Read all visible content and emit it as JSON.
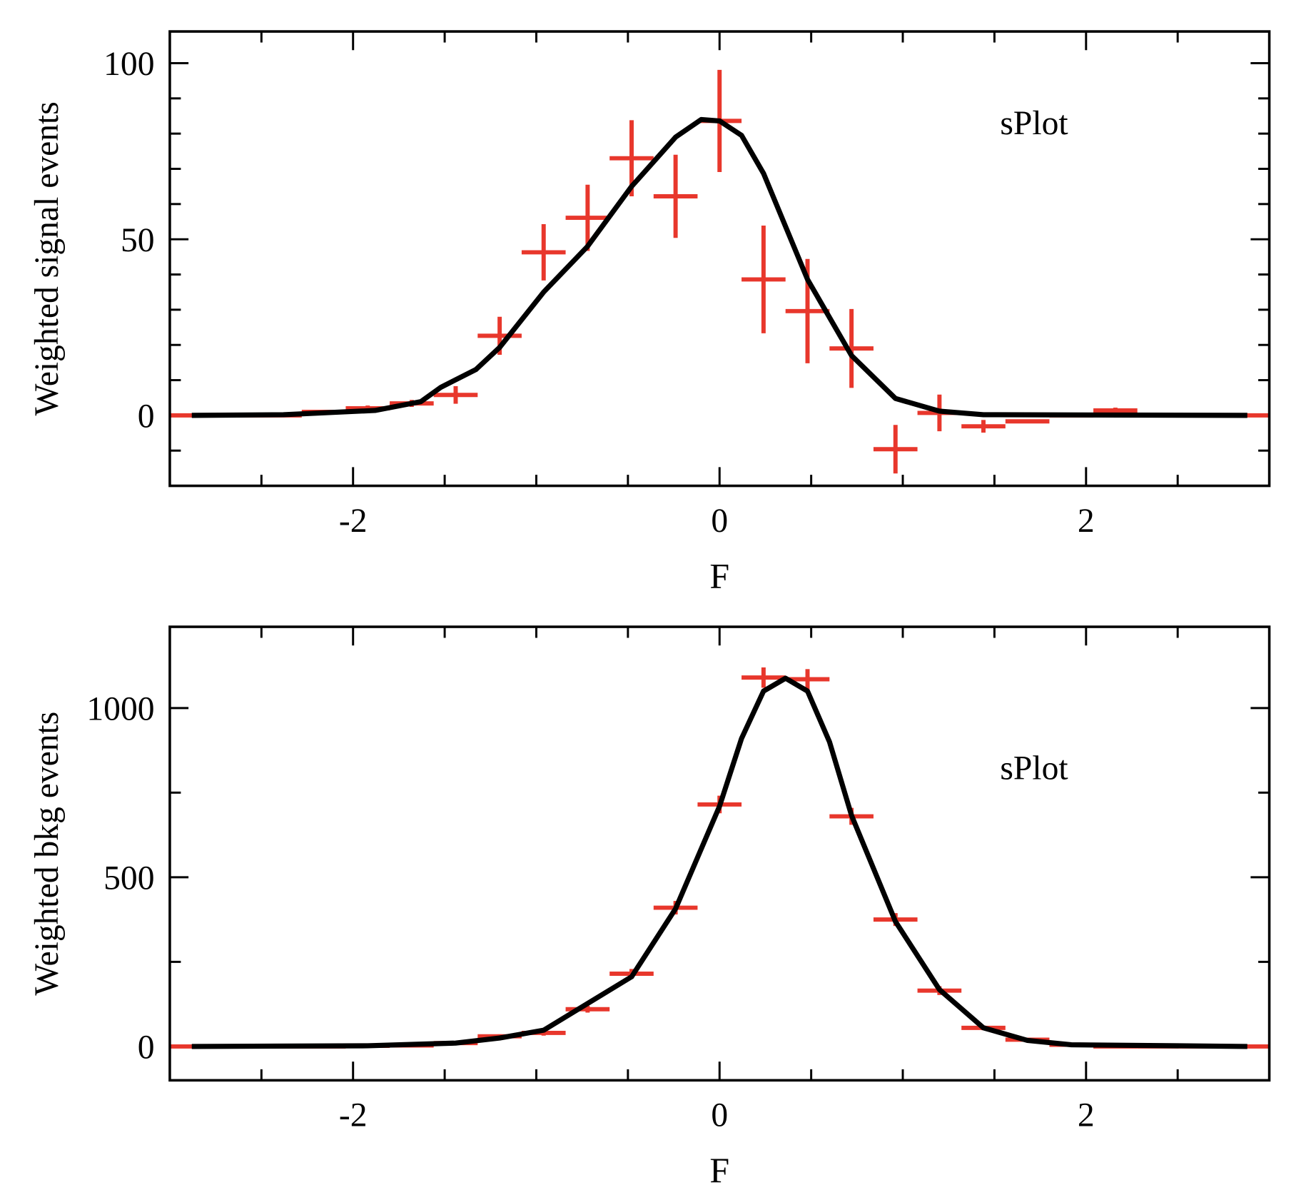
{
  "chart_data": [
    {
      "type": "errorbar",
      "xlabel": "F",
      "ylabel": "Weighted signal events",
      "annotation": "sPlot",
      "xlim": [
        -3,
        3
      ],
      "ylim": [
        -20,
        109
      ],
      "xticks": [
        -2,
        0,
        2
      ],
      "xminorticks": [
        -2.5,
        -1.5,
        -1,
        -0.5,
        0.5,
        1,
        1.5,
        2.5
      ],
      "yticks": [
        0,
        50,
        100
      ],
      "yminorticks": [
        -10,
        10,
        20,
        30,
        40,
        60,
        70,
        80,
        90
      ],
      "color": "#e8372c",
      "x": [
        -2.88,
        -2.64,
        -2.4,
        -2.16,
        -1.92,
        -1.68,
        -1.44,
        -1.2,
        -0.96,
        -0.72,
        -0.48,
        -0.24,
        0,
        0.24,
        0.48,
        0.72,
        0.96,
        1.2,
        1.44,
        1.68,
        1.92,
        2.16,
        2.4,
        2.64,
        2.88
      ],
      "xerr": 0.12,
      "values": [
        0,
        0,
        0,
        1,
        2,
        3.4,
        5.8,
        22.6,
        46.3,
        56.1,
        73,
        62.2,
        83.6,
        38.6,
        29.6,
        19,
        -9.6,
        0.7,
        -3.1,
        -1.7,
        0,
        1.4,
        0,
        0,
        0
      ],
      "errors": [
        0,
        0,
        0,
        0.5,
        0.8,
        1,
        2.5,
        5.4,
        8,
        9.4,
        10.8,
        11.8,
        14.5,
        15.3,
        14.8,
        11.2,
        6.9,
        5.2,
        1.8,
        0.5,
        0,
        0.8,
        0,
        0,
        0
      ],
      "fit": {
        "color": "#000000",
        "x": [
          -2.88,
          -2.38,
          -1.88,
          -1.63,
          -1.52,
          -1.33,
          -1.2,
          -0.96,
          -0.72,
          -0.48,
          -0.24,
          -0.1,
          0,
          0.12,
          0.24,
          0.48,
          0.72,
          0.96,
          1.2,
          1.44,
          2.88
        ],
        "values": [
          0,
          0.2,
          1.4,
          3.9,
          8,
          13,
          19.3,
          35,
          48,
          65,
          79,
          84,
          83.6,
          79.5,
          68.7,
          38.6,
          17,
          4.8,
          1.2,
          0.2,
          0
        ]
      }
    },
    {
      "type": "errorbar",
      "xlabel": "F",
      "ylabel": "Weighted bkg events",
      "annotation": "sPlot",
      "xlim": [
        -3,
        3
      ],
      "ylim": [
        -100,
        1240
      ],
      "xticks": [
        -2,
        0,
        2
      ],
      "xminorticks": [
        -2.5,
        -1.5,
        -1,
        -0.5,
        0.5,
        1,
        1.5,
        2.5
      ],
      "yticks": [
        0,
        500,
        1000
      ],
      "yminorticks": [
        250,
        750
      ],
      "color": "#e8372c",
      "x": [
        -2.88,
        -2.64,
        -2.4,
        -2.16,
        -1.92,
        -1.68,
        -1.44,
        -1.2,
        -0.96,
        -0.72,
        -0.48,
        -0.24,
        0,
        0.24,
        0.48,
        0.72,
        0.96,
        1.2,
        1.44,
        1.68,
        1.92,
        2.16,
        2.4,
        2.64,
        2.88
      ],
      "xerr": 0.12,
      "values": [
        0,
        0,
        0,
        0,
        2,
        3,
        10,
        30,
        40,
        110,
        215,
        410,
        715,
        1090,
        1085,
        680,
        375,
        165,
        55,
        20,
        5,
        0,
        0,
        0,
        0
      ],
      "errors": [
        0,
        0,
        0,
        0,
        1,
        2,
        4,
        6,
        8,
        10,
        14,
        20,
        26,
        30,
        30,
        25,
        19,
        13,
        7,
        4,
        2,
        0,
        0,
        0,
        0
      ],
      "fit": {
        "color": "#000000",
        "x": [
          -2.88,
          -1.92,
          -1.44,
          -1.2,
          -0.96,
          -0.48,
          -0.24,
          0,
          0.12,
          0.24,
          0.36,
          0.48,
          0.6,
          0.72,
          0.96,
          1.2,
          1.44,
          1.68,
          1.92,
          2.88
        ],
        "values": [
          0,
          2,
          10,
          25,
          48,
          206,
          407,
          710,
          910,
          1050,
          1088,
          1050,
          900,
          683,
          369,
          168,
          55,
          18,
          5,
          0
        ]
      }
    }
  ]
}
